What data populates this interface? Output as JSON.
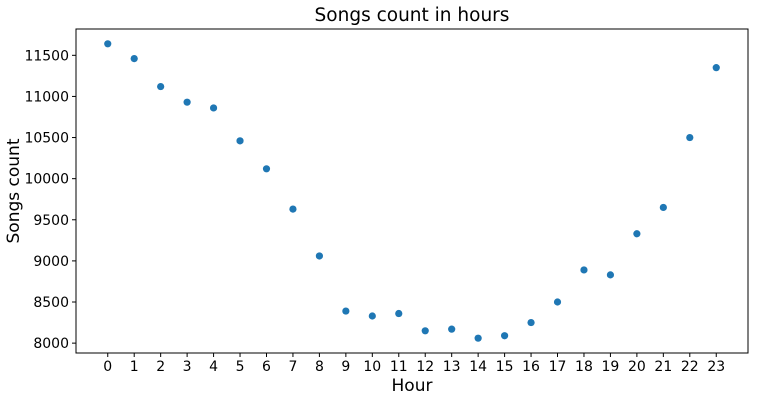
{
  "chart_data": {
    "type": "scatter",
    "title": "Songs count in hours",
    "xlabel": "Hour",
    "ylabel": "Songs count",
    "x": [
      0,
      1,
      2,
      3,
      4,
      5,
      6,
      7,
      8,
      9,
      10,
      11,
      12,
      13,
      14,
      15,
      16,
      17,
      18,
      19,
      20,
      21,
      22,
      23
    ],
    "y": [
      11640,
      11460,
      11120,
      10930,
      10860,
      10460,
      10120,
      9630,
      9060,
      8390,
      8330,
      8360,
      8150,
      8170,
      8060,
      8090,
      8250,
      8500,
      8890,
      8830,
      9330,
      9650,
      10500,
      11350
    ],
    "xticks": [
      "0",
      "1",
      "2",
      "3",
      "4",
      "5",
      "6",
      "7",
      "8",
      "9",
      "10",
      "11",
      "12",
      "13",
      "14",
      "15",
      "16",
      "17",
      "18",
      "19",
      "20",
      "21",
      "22",
      "23"
    ],
    "yticks": [
      "8000",
      "8500",
      "9000",
      "9500",
      "10000",
      "10500",
      "11000",
      "11500"
    ],
    "xlim": [
      -1.2,
      24.2
    ],
    "ylim": [
      7880,
      11820
    ],
    "grid": false,
    "marker_color": "#1f77b4"
  }
}
